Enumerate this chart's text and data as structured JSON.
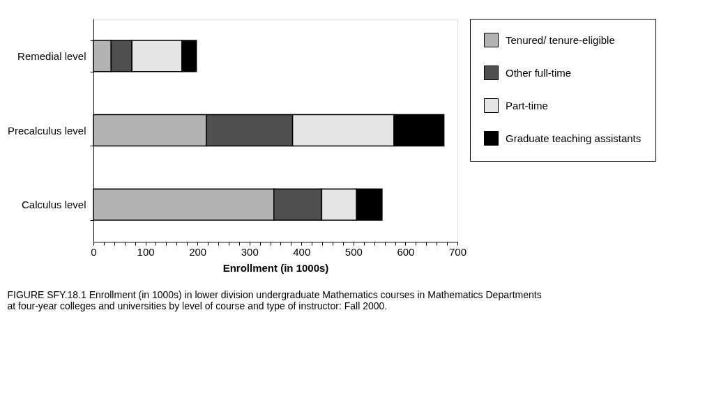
{
  "chart_data": {
    "type": "bar",
    "orientation": "horizontal",
    "stacked": true,
    "categories": [
      "Remedial level",
      "Precalculus level",
      "Calculus level"
    ],
    "series": [
      {
        "name": "Tenured/ tenure-eligible",
        "color": "#b3b3b3",
        "values": [
          34,
          217,
          347
        ]
      },
      {
        "name": "Other full-time",
        "color": "#4f4f4f",
        "values": [
          40,
          166,
          92
        ]
      },
      {
        "name": "Part-time",
        "color": "#e5e5e5",
        "values": [
          96,
          195,
          67
        ]
      },
      {
        "name": "Graduate teaching assistants",
        "color": "#000000",
        "values": [
          28,
          96,
          49
        ]
      }
    ],
    "xlim": [
      0,
      700
    ],
    "xticks": [
      0,
      {
        "value": 20,
        "label": null
      },
      {
        "value": 40,
        "label": null
      },
      {
        "value": 60,
        "label": null
      },
      {
        "value": 80,
        "label": null
      },
      100,
      {
        "value": 120,
        "label": null
      },
      {
        "value": 140,
        "label": null
      },
      {
        "value": 160,
        "label": null
      },
      {
        "value": 180,
        "label": null
      },
      200,
      {
        "value": 220,
        "label": null
      },
      {
        "value": 240,
        "label": null
      },
      {
        "value": 260,
        "label": null
      },
      {
        "value": 280,
        "label": null
      },
      300,
      {
        "value": 320,
        "label": null
      },
      {
        "value": 340,
        "label": null
      },
      {
        "value": 360,
        "label": null
      },
      {
        "value": 380,
        "label": null
      },
      400,
      {
        "value": 420,
        "label": null
      },
      {
        "value": 440,
        "label": null
      },
      {
        "value": 460,
        "label": null
      },
      {
        "value": 480,
        "label": null
      },
      500,
      {
        "value": 520,
        "label": null
      },
      {
        "value": 540,
        "label": null
      },
      {
        "value": 560,
        "label": null
      },
      {
        "value": 580,
        "label": null
      },
      600,
      {
        "value": 620,
        "label": null
      },
      {
        "value": 640,
        "label": null
      },
      {
        "value": 660,
        "label": null
      },
      {
        "value": 680,
        "label": null
      },
      700
    ],
    "xlabel": "Enrollment (in 1000s)",
    "legend": "right",
    "grid": false,
    "annotations": [
      "FIGURE SFY.18.1 Enrollment (in 1000s) in lower division undergraduate Mathematics courses in Mathematics Departments at four-year colleges and universities by level of course and type of instructor: Fall 2000."
    ]
  }
}
